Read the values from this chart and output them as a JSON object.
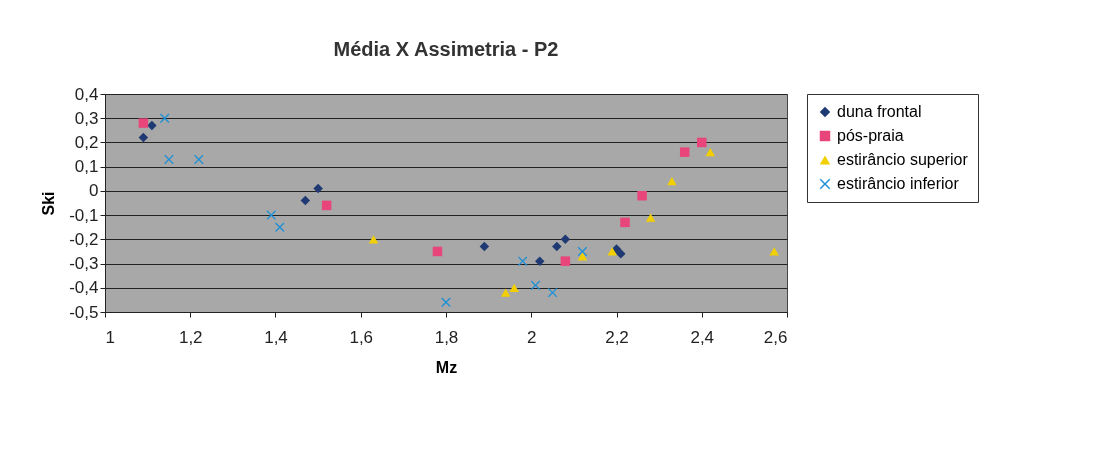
{
  "chart_data": {
    "type": "scatter",
    "title": "Média X Assimetria - P2",
    "xlabel": "Mz",
    "ylabel": "Ski",
    "xlim": [
      1,
      2.6
    ],
    "ylim": [
      -0.5,
      0.4
    ],
    "xticks": [
      1,
      {
        "value": 1.2,
        "label": "1,2"
      },
      {
        "value": 1.4,
        "label": "1,4"
      },
      {
        "value": 1.6,
        "label": "1,6"
      },
      {
        "value": 1.8,
        "label": "1,8"
      },
      2,
      {
        "value": 2.2,
        "label": "2,2"
      },
      {
        "value": 2.4,
        "label": "2,4"
      },
      {
        "value": 2.6,
        "label": "2,6"
      }
    ],
    "yticks": [
      {
        "value": -0.5,
        "label": "-0,5"
      },
      {
        "value": -0.4,
        "label": "-0,4"
      },
      {
        "value": -0.3,
        "label": "-0,3"
      },
      {
        "value": -0.2,
        "label": "-0,2"
      },
      {
        "value": -0.1,
        "label": "-0,1"
      },
      0,
      {
        "value": 0.1,
        "label": "0,1"
      },
      {
        "value": 0.2,
        "label": "0,2"
      },
      {
        "value": 0.3,
        "label": "0,3"
      },
      {
        "value": 0.4,
        "label": "0,4"
      }
    ],
    "grid": "y",
    "legend": "right",
    "series": [
      {
        "name": "duna frontal",
        "color": "#1f3a73",
        "marker": "diamond",
        "x": [
          1.09,
          1.11,
          1.47,
          1.5,
          1.89,
          2.02,
          2.06,
          2.08,
          2.2,
          2.21
        ],
        "values": [
          0.22,
          0.27,
          -0.04,
          0.01,
          -0.23,
          -0.29,
          -0.23,
          -0.2,
          -0.24,
          -0.26
        ]
      },
      {
        "name": "pós-praia",
        "color": "#e8457a",
        "marker": "square",
        "x": [
          1.09,
          1.52,
          1.78,
          2.08,
          2.22,
          2.26,
          2.36,
          2.4
        ],
        "values": [
          0.28,
          -0.06,
          -0.25,
          -0.29,
          -0.13,
          -0.02,
          0.16,
          0.2
        ]
      },
      {
        "name": "estirâncio superior",
        "color": "#f2cf00",
        "marker": "triangle",
        "x": [
          1.63,
          1.94,
          1.96,
          2.12,
          2.19,
          2.28,
          2.33,
          2.42,
          2.57
        ],
        "values": [
          -0.2,
          -0.42,
          -0.4,
          -0.27,
          -0.25,
          -0.11,
          0.04,
          0.16,
          -0.25
        ]
      },
      {
        "name": "estirâncio inferior",
        "color": "#1e90d6",
        "marker": "cross",
        "x": [
          1.14,
          1.15,
          1.22,
          1.39,
          1.41,
          1.8,
          1.98,
          2.01,
          2.05,
          2.12
        ],
        "values": [
          0.3,
          0.13,
          0.13,
          -0.1,
          -0.15,
          -0.46,
          -0.29,
          -0.39,
          -0.42,
          -0.25
        ]
      }
    ]
  }
}
